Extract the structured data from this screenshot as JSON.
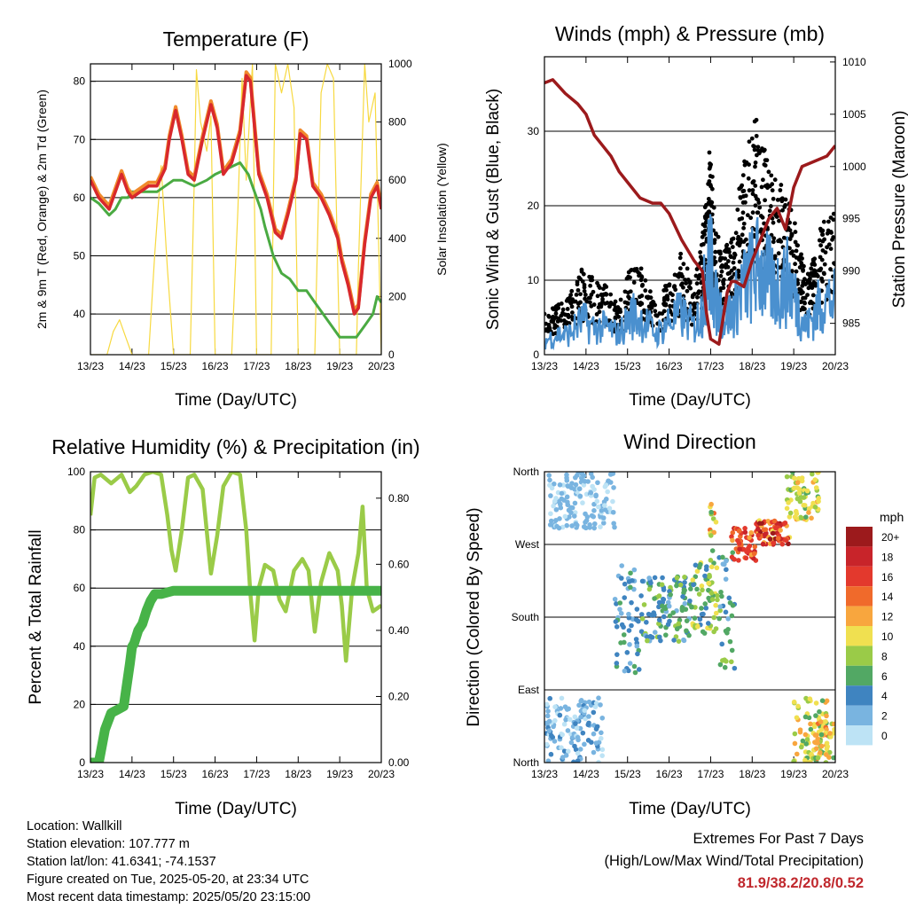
{
  "info": {
    "location": "Location: Wallkill",
    "elevation": "Station elevation: 107.777 m",
    "latlon": "Station lat/lon: 41.6341; -74.1537",
    "created": "Figure created on Tue, 2025-05-20, at 23:34 UTC",
    "recent": "Most recent data timestamp: 2025/05/20 23:15:00"
  },
  "extremes": {
    "title": "Extremes For Past 7 Days",
    "subtitle": "(High/Low/Max Wind/Total Precipitation)",
    "values": "81.9/38.2/20.8/0.52"
  },
  "chart_data": [
    {
      "type": "line",
      "title": "Temperature (F)",
      "xlabel": "Time (Day/UTC)",
      "ylabel": "2m & 9m T (Red, Orange) & 2m Td (Green)",
      "ylabel_right": "Solar Insolation (Yellow)",
      "x_ticks": [
        "13/23",
        "14/23",
        "15/23",
        "16/23",
        "17/23",
        "18/23",
        "19/23",
        "20/23"
      ],
      "xlim": [
        0,
        7
      ],
      "ylim": [
        33,
        83
      ],
      "yticks": [
        40,
        50,
        60,
        70,
        80
      ],
      "ylim_right": [
        0,
        1000
      ],
      "yticks_right": [
        0,
        200,
        400,
        600,
        800,
        1000
      ],
      "ytick_labels_right": [
        "0",
        "200",
        "400",
        "600",
        "800",
        "1000"
      ],
      "grid": true,
      "colors": {
        "t2m": "#d8282c",
        "t9m": "#f08a2c",
        "td": "#4aaa42",
        "solar": "#f7d940"
      },
      "series": [
        {
          "key": "t2m",
          "x": [
            0,
            0.2,
            0.45,
            0.6,
            0.75,
            0.9,
            1,
            1.2,
            1.4,
            1.6,
            1.8,
            1.9,
            2.05,
            2.2,
            2.35,
            2.5,
            2.7,
            2.9,
            3.05,
            3.2,
            3.4,
            3.6,
            3.75,
            3.85,
            3.95,
            4.05,
            4.25,
            4.45,
            4.6,
            4.75,
            4.95,
            5.05,
            5.2,
            5.35,
            5.55,
            5.75,
            5.95,
            6.05,
            6.2,
            6.35,
            6.45,
            6.6,
            6.75,
            6.9,
            7
          ],
          "y": [
            63,
            60,
            58,
            61,
            64,
            61,
            60,
            61,
            62,
            62,
            65,
            70,
            75,
            70,
            64,
            63,
            70,
            76,
            72,
            64,
            66,
            71,
            81,
            80,
            72,
            64,
            60,
            54,
            53,
            57,
            63,
            71,
            70,
            62,
            60,
            57,
            53,
            49,
            45,
            40,
            41,
            52,
            60,
            62,
            58
          ]
        },
        {
          "key": "td",
          "x": [
            0,
            0.2,
            0.45,
            0.6,
            0.75,
            0.9,
            1,
            1.2,
            1.4,
            1.6,
            1.8,
            2,
            2.2,
            2.5,
            2.8,
            3,
            3.3,
            3.6,
            3.8,
            3.9,
            4,
            4.1,
            4.2,
            4.4,
            4.6,
            4.8,
            5,
            5.2,
            5.4,
            5.6,
            5.8,
            6,
            6.2,
            6.4,
            6.6,
            6.8,
            6.9,
            7
          ],
          "y": [
            60,
            59,
            57,
            58,
            60,
            60,
            61,
            61,
            61,
            61,
            62,
            63,
            63,
            62,
            63,
            64,
            65,
            66,
            64,
            62,
            60,
            58,
            55,
            50,
            47,
            46,
            44,
            44,
            42,
            40,
            38,
            36,
            36,
            36,
            38,
            40,
            43,
            42
          ]
        },
        {
          "key": "solar",
          "x": [
            0,
            0.4,
            0.55,
            0.7,
            0.85,
            1,
            1.4,
            1.55,
            1.7,
            1.85,
            2,
            2.4,
            2.5,
            2.55,
            2.65,
            2.8,
            2.9,
            3,
            3.4,
            3.55,
            3.65,
            3.75,
            3.9,
            4,
            4.35,
            4.45,
            4.6,
            4.75,
            4.9,
            5,
            5.4,
            5.55,
            5.7,
            5.85,
            6,
            6.4,
            6.45,
            6.6,
            6.7,
            6.85,
            7
          ],
          "y": [
            0,
            0,
            80,
            120,
            60,
            0,
            0,
            350,
            650,
            300,
            0,
            0,
            600,
            980,
            800,
            700,
            820,
            0,
            0,
            500,
            950,
            600,
            1000,
            0,
            0,
            1000,
            900,
            1000,
            850,
            0,
            0,
            900,
            1000,
            950,
            0,
            0,
            300,
            1000,
            800,
            900,
            0
          ]
        }
      ]
    },
    {
      "type": "line",
      "title": "Winds (mph) & Pressure (mb)",
      "xlabel": "Time (Day/UTC)",
      "ylabel": "Sonic Wind & Gust (Blue, Black)",
      "ylabel_right": "Station Pressure (Maroon)",
      "x_ticks": [
        "13/23",
        "14/23",
        "15/23",
        "16/23",
        "17/23",
        "18/23",
        "19/23",
        "20/23"
      ],
      "xlim": [
        0,
        7
      ],
      "ylim": [
        0,
        40
      ],
      "yticks": [
        0,
        10,
        20,
        30
      ],
      "ylim_right": [
        982,
        1010.5
      ],
      "yticks_right": [
        985,
        990,
        995,
        1000,
        1005,
        1010
      ],
      "ytick_labels_right": [
        "985",
        "990",
        "995",
        "1000",
        "1005",
        "1010"
      ],
      "grid": true,
      "colors": {
        "wind": "#4a90cf",
        "gust": "#000000",
        "pressure": "#9c1a1c"
      },
      "series": [
        {
          "key": "wind",
          "x": [
            0,
            0.3,
            0.6,
            0.9,
            1.2,
            1.5,
            1.8,
            2.1,
            2.4,
            2.7,
            3,
            3.3,
            3.6,
            3.8,
            3.9,
            4,
            4.1,
            4.3,
            4.5,
            4.7,
            4.9,
            5.1,
            5.3,
            5.5,
            5.7,
            5.9,
            6.1,
            6.3,
            6.5,
            6.7,
            7
          ],
          "y": [
            2,
            3,
            3,
            5,
            4,
            4,
            3,
            6,
            5,
            3,
            5,
            6,
            4,
            7,
            12,
            14,
            8,
            6,
            6,
            9,
            11,
            13,
            12,
            10,
            10,
            11,
            7,
            4,
            6,
            8,
            8
          ]
        },
        {
          "key": "gust",
          "x": [
            0,
            0.3,
            0.6,
            0.9,
            1.2,
            1.5,
            1.8,
            2.1,
            2.4,
            2.7,
            3,
            3.3,
            3.6,
            3.8,
            3.9,
            4,
            4.1,
            4.3,
            4.5,
            4.7,
            4.9,
            5.1,
            5.3,
            5.5,
            5.7,
            5.9,
            6.1,
            6.3,
            6.5,
            6.7,
            7
          ],
          "y": [
            5,
            6,
            7,
            10,
            9,
            8,
            6,
            11,
            10,
            6,
            9,
            12,
            8,
            14,
            22,
            25,
            16,
            12,
            14,
            20,
            25,
            28,
            24,
            21,
            20,
            18,
            14,
            9,
            12,
            16,
            17
          ]
        },
        {
          "key": "pressure",
          "x": [
            0,
            0.2,
            0.5,
            0.8,
            1,
            1.2,
            1.4,
            1.6,
            1.8,
            2,
            2.3,
            2.6,
            2.8,
            3,
            3.3,
            3.6,
            3.8,
            3.9,
            4,
            4.2,
            4.4,
            4.5,
            4.6,
            4.8,
            5,
            5.2,
            5.4,
            5.6,
            5.8,
            6,
            6.2,
            6.5,
            6.8,
            7
          ],
          "y": [
            1008,
            1008.3,
            1007,
            1006,
            1005,
            1003,
            1002,
            1001,
            999.5,
            998.5,
            997,
            996.5,
            996.5,
            995.5,
            993,
            991,
            990,
            986,
            983.5,
            983,
            988,
            989,
            989,
            988.5,
            991,
            993,
            995,
            996,
            994,
            998,
            1000,
            1000.5,
            1001,
            1002
          ]
        }
      ]
    },
    {
      "type": "line",
      "title": "Relative Humidity (%) & Precipitation (in)",
      "xlabel": "Time (Day/UTC)",
      "ylabel": "Percent & Total Rainfall",
      "x_ticks": [
        "13/23",
        "14/23",
        "15/23",
        "16/23",
        "17/23",
        "18/23",
        "19/23",
        "20/23"
      ],
      "xlim": [
        0,
        7
      ],
      "ylim": [
        0,
        100
      ],
      "yticks": [
        0,
        20,
        40,
        60,
        80,
        100
      ],
      "ylim_right": [
        0,
        0.88
      ],
      "yticks_right": [
        0,
        0.2,
        0.4,
        0.6,
        0.8
      ],
      "ytick_labels_right": [
        "0.00",
        "0.20",
        "0.40",
        "0.60",
        "0.80"
      ],
      "grid": true,
      "colors": {
        "rh": "#9acb48",
        "precip": "#47b348"
      },
      "series": [
        {
          "key": "rh",
          "x": [
            0,
            0.1,
            0.25,
            0.5,
            0.75,
            0.95,
            1.1,
            1.3,
            1.5,
            1.7,
            1.85,
            1.95,
            2.05,
            2.2,
            2.35,
            2.5,
            2.7,
            2.9,
            3.05,
            3.2,
            3.4,
            3.6,
            3.75,
            3.85,
            3.95,
            4.05,
            4.2,
            4.4,
            4.55,
            4.7,
            4.9,
            5.1,
            5.25,
            5.4,
            5.55,
            5.75,
            5.95,
            6.05,
            6.15,
            6.3,
            6.45,
            6.55,
            6.65,
            6.8,
            7
          ],
          "y": [
            85,
            98,
            99,
            96,
            99,
            93,
            95,
            99,
            100,
            99,
            85,
            73,
            66,
            80,
            98,
            99,
            94,
            65,
            78,
            95,
            100,
            99,
            80,
            58,
            42,
            60,
            68,
            66,
            56,
            52,
            66,
            70,
            66,
            45,
            62,
            72,
            66,
            54,
            35,
            60,
            72,
            88,
            60,
            52,
            54
          ]
        },
        {
          "key": "precip",
          "x": [
            0,
            0.2,
            0.35,
            0.5,
            0.65,
            0.8,
            0.95,
            1,
            1.05,
            1.15,
            1.25,
            1.35,
            1.45,
            1.55,
            1.7,
            2,
            3,
            4,
            5,
            6,
            7
          ],
          "y": [
            0,
            0,
            0.1,
            0.15,
            0.16,
            0.17,
            0.3,
            0.35,
            0.36,
            0.4,
            0.42,
            0.46,
            0.49,
            0.51,
            0.51,
            0.52,
            0.52,
            0.52,
            0.52,
            0.52,
            0.52
          ]
        }
      ]
    },
    {
      "type": "scatter",
      "title": "Wind Direction",
      "xlabel": "Time (Day/UTC)",
      "ylabel": "Direction (Colored By Speed)",
      "x_ticks": [
        "13/23",
        "14/23",
        "15/23",
        "16/23",
        "17/23",
        "18/23",
        "19/23",
        "20/23"
      ],
      "xlim": [
        0,
        7
      ],
      "ylim": [
        0,
        360
      ],
      "yticks": [
        0,
        90,
        180,
        270,
        360
      ],
      "ytick_labels": [
        "North",
        "East",
        "South",
        "West",
        "North"
      ],
      "grid": true,
      "legend": {
        "title": "mph",
        "labels": [
          "20+",
          "18",
          "16",
          "14",
          "12",
          "10",
          "8",
          "6",
          "4",
          "2",
          "0"
        ],
        "colors": [
          "#9c1a1c",
          "#c8242a",
          "#e3392d",
          "#f06a2b",
          "#f8a63e",
          "#f0e050",
          "#9acb48",
          "#52a864",
          "#3f84c0",
          "#79b4e0",
          "#bde3f5"
        ]
      },
      "clusters": [
        {
          "x": [
            0,
            1.4
          ],
          "dir": [
            0,
            80
          ],
          "speed": [
            0,
            4
          ]
        },
        {
          "x": [
            0.1,
            1.7
          ],
          "dir": [
            290,
            360
          ],
          "speed": [
            0,
            3
          ]
        },
        {
          "x": [
            1.7,
            2.3
          ],
          "dir": [
            110,
            250
          ],
          "speed": [
            2,
            6
          ]
        },
        {
          "x": [
            2.3,
            3.5
          ],
          "dir": [
            150,
            230
          ],
          "speed": [
            2,
            8
          ]
        },
        {
          "x": [
            3.5,
            4.2
          ],
          "dir": [
            160,
            250
          ],
          "speed": [
            4,
            10
          ]
        },
        {
          "x": [
            4.2,
            4.6
          ],
          "dir": [
            100,
            260
          ],
          "speed": [
            2,
            8
          ]
        },
        {
          "x": [
            3.95,
            4.15
          ],
          "dir": [
            220,
            320
          ],
          "speed": [
            6,
            14
          ]
        },
        {
          "x": [
            4.5,
            5.1
          ],
          "dir": [
            250,
            290
          ],
          "speed": [
            12,
            18
          ]
        },
        {
          "x": [
            5.1,
            5.9
          ],
          "dir": [
            270,
            300
          ],
          "speed": [
            10,
            20
          ]
        },
        {
          "x": [
            5.8,
            6.6
          ],
          "dir": [
            300,
            360
          ],
          "speed": [
            6,
            12
          ]
        },
        {
          "x": [
            6.0,
            6.8
          ],
          "dir": [
            0,
            80
          ],
          "speed": [
            6,
            12
          ]
        },
        {
          "x": [
            6.5,
            7
          ],
          "dir": [
            0,
            60
          ],
          "speed": [
            6,
            14
          ]
        }
      ]
    }
  ]
}
